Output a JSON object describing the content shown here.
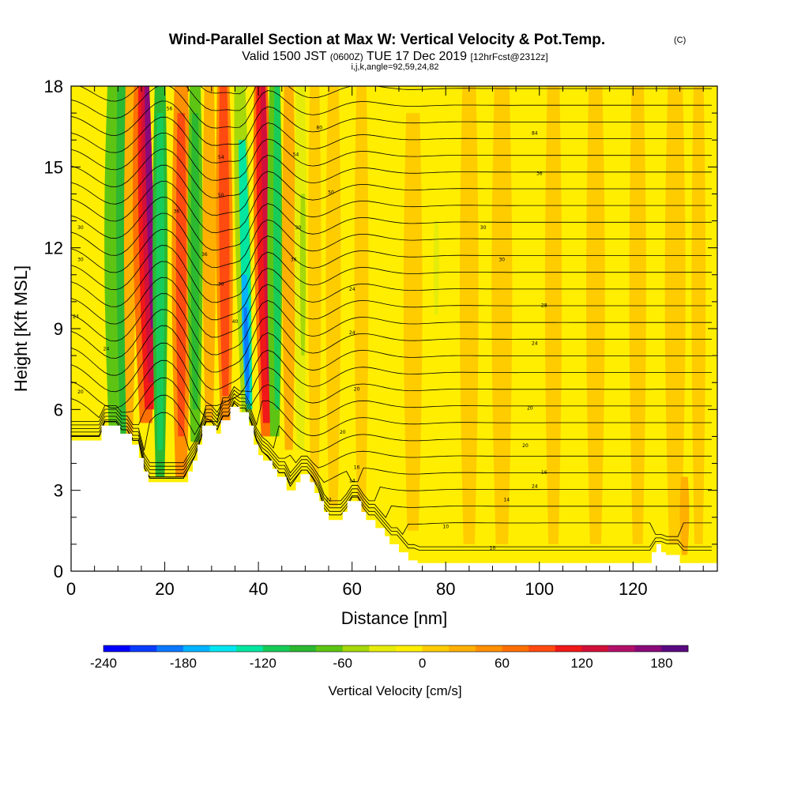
{
  "header": {
    "title": "Wind-Parallel Section at Max W: Vertical Velocity & Pot.Temp.",
    "copyright": "(C)",
    "valid_prefix": "Valid 1500 JST",
    "valid_zulu": "(0600Z)",
    "valid_date": "TUE 17 Dec 2019",
    "forecast": "[12hrFcst@2312z]",
    "indices": "i,j,k,angle=92,59,24,82"
  },
  "chart_data": {
    "type": "heatmap",
    "xlabel": "Distance [nm]",
    "ylabel": "Height [Kft MSL]",
    "xlim": [
      0,
      138
    ],
    "ylim": [
      0,
      18
    ],
    "x_ticks": [
      0,
      20,
      40,
      60,
      80,
      100,
      120
    ],
    "y_ticks": [
      0,
      3,
      6,
      9,
      12,
      15,
      18
    ],
    "x_tick_labels": [
      "0",
      "20",
      "40",
      "60",
      "80",
      "100",
      "120"
    ],
    "y_tick_labels": [
      "0",
      "3",
      "6",
      "9",
      "12",
      "15",
      "18"
    ],
    "colorbar": {
      "title": "Vertical Velocity [cm/s]",
      "min": -240,
      "max": 200,
      "step": 20,
      "tick_values": [
        -240,
        -180,
        -120,
        -60,
        0,
        60,
        120,
        180
      ],
      "tick_labels": [
        "-240",
        "-180",
        "-120",
        "-60",
        "0",
        "60",
        "120",
        "180"
      ],
      "colors": [
        "#0000ff",
        "#0a3cff",
        "#0a78ff",
        "#00b4ff",
        "#00e6f0",
        "#00e6a0",
        "#18cc5a",
        "#2cb830",
        "#5ec414",
        "#a6d80a",
        "#e6ec0a",
        "#ffee00",
        "#ffcc00",
        "#ffb000",
        "#ff9000",
        "#ff7000",
        "#ff4a10",
        "#f01818",
        "#d0103a",
        "#b0106a",
        "#8a0a7a",
        "#5a0a80"
      ]
    },
    "terrain": [
      [
        0,
        4.85
      ],
      [
        6.5,
        4.85
      ],
      [
        6.5,
        5.4
      ],
      [
        10.5,
        5.4
      ],
      [
        10.5,
        5.1
      ],
      [
        13,
        5.1
      ],
      [
        13,
        4.7
      ],
      [
        14.5,
        4.7
      ],
      [
        14.5,
        4.2
      ],
      [
        15.5,
        4.2
      ],
      [
        15.5,
        3.7
      ],
      [
        16.5,
        3.7
      ],
      [
        16.5,
        3.3
      ],
      [
        25,
        3.3
      ],
      [
        25,
        3.7
      ],
      [
        26,
        3.7
      ],
      [
        26,
        4.1
      ],
      [
        27,
        4.1
      ],
      [
        27,
        4.7
      ],
      [
        28,
        4.7
      ],
      [
        28,
        5.4
      ],
      [
        31,
        5.4
      ],
      [
        31,
        5.1
      ],
      [
        32,
        5.1
      ],
      [
        32,
        5.6
      ],
      [
        34,
        5.6
      ],
      [
        34,
        6.1
      ],
      [
        36,
        6.1
      ],
      [
        36,
        5.9
      ],
      [
        38,
        5.9
      ],
      [
        38,
        5.4
      ],
      [
        39,
        5.4
      ],
      [
        39,
        4.7
      ],
      [
        40,
        4.7
      ],
      [
        40,
        4.3
      ],
      [
        41,
        4.3
      ],
      [
        41,
        4.1
      ],
      [
        43,
        4.1
      ],
      [
        43,
        3.8
      ],
      [
        44,
        3.8
      ],
      [
        44,
        3.5
      ],
      [
        46,
        3.5
      ],
      [
        46,
        3
      ],
      [
        48,
        3
      ],
      [
        48,
        3.3
      ],
      [
        49,
        3.3
      ],
      [
        49,
        3.6
      ],
      [
        51,
        3.6
      ],
      [
        51,
        3.3
      ],
      [
        52,
        3.3
      ],
      [
        52,
        2.9
      ],
      [
        53,
        2.9
      ],
      [
        53,
        2.6
      ],
      [
        54,
        2.6
      ],
      [
        54,
        2.2
      ],
      [
        55,
        2.2
      ],
      [
        55,
        1.9
      ],
      [
        58,
        1.9
      ],
      [
        58,
        2.2
      ],
      [
        59,
        2.2
      ],
      [
        59,
        2.6
      ],
      [
        62,
        2.6
      ],
      [
        62,
        2.2
      ],
      [
        63,
        2.2
      ],
      [
        63,
        1.9
      ],
      [
        65,
        1.9
      ],
      [
        65,
        1.6
      ],
      [
        67,
        1.6
      ],
      [
        67,
        1.3
      ],
      [
        68,
        1.3
      ],
      [
        68,
        1
      ],
      [
        70,
        1
      ],
      [
        70,
        0.7
      ],
      [
        72,
        0.7
      ],
      [
        72,
        0.4
      ],
      [
        74,
        0.4
      ],
      [
        74,
        0.3
      ],
      [
        124,
        0.3
      ],
      [
        124,
        0.7
      ],
      [
        125,
        0.7
      ],
      [
        125,
        1
      ],
      [
        126,
        1
      ],
      [
        126,
        0.7
      ],
      [
        127,
        0.7
      ],
      [
        127,
        0.6
      ],
      [
        130,
        0.6
      ],
      [
        130,
        0.3
      ],
      [
        138,
        0.3
      ],
      [
        138,
        0
      ]
    ],
    "theta_labels": [
      {
        "text": "56",
        "x": 21,
        "y": 17.1
      },
      {
        "text": "54",
        "x": 32,
        "y": 15.3
      },
      {
        "text": "50",
        "x": 32,
        "y": 13.9
      },
      {
        "text": "36",
        "x": 22.5,
        "y": 13.3
      },
      {
        "text": "36",
        "x": 28.5,
        "y": 11.7
      },
      {
        "text": "36",
        "x": 32,
        "y": 10.6
      },
      {
        "text": "30",
        "x": 2,
        "y": 12.7
      },
      {
        "text": "30",
        "x": 2,
        "y": 11.5
      },
      {
        "text": "24",
        "x": 1,
        "y": 9.4
      },
      {
        "text": "24",
        "x": 7.5,
        "y": 8.2
      },
      {
        "text": "20",
        "x": 2,
        "y": 6.6
      },
      {
        "text": "40",
        "x": 35,
        "y": 9.2
      },
      {
        "text": "80",
        "x": 53,
        "y": 16.4
      },
      {
        "text": "54",
        "x": 48,
        "y": 15.4
      },
      {
        "text": "50",
        "x": 55.5,
        "y": 14.0
      },
      {
        "text": "30",
        "x": 48.5,
        "y": 12.7
      },
      {
        "text": "36",
        "x": 47.5,
        "y": 11.5
      },
      {
        "text": "24",
        "x": 60,
        "y": 10.4
      },
      {
        "text": "24",
        "x": 60,
        "y": 8.8
      },
      {
        "text": "20",
        "x": 61,
        "y": 6.7
      },
      {
        "text": "20",
        "x": 58,
        "y": 5.1
      },
      {
        "text": "16",
        "x": 61,
        "y": 3.8
      },
      {
        "text": "14",
        "x": 60,
        "y": 3.3
      },
      {
        "text": "12",
        "x": 55,
        "y": 2.6
      },
      {
        "text": "10",
        "x": 80,
        "y": 1.6
      },
      {
        "text": "10",
        "x": 90,
        "y": 0.8
      },
      {
        "text": "14",
        "x": 93,
        "y": 2.6
      },
      {
        "text": "16",
        "x": 101,
        "y": 3.6
      },
      {
        "text": "20",
        "x": 97,
        "y": 4.6
      },
      {
        "text": "20",
        "x": 98,
        "y": 6.0
      },
      {
        "text": "24",
        "x": 99,
        "y": 3.1
      },
      {
        "text": "24",
        "x": 99,
        "y": 8.4
      },
      {
        "text": "28",
        "x": 101,
        "y": 9.8
      },
      {
        "text": "30",
        "x": 92,
        "y": 11.5
      },
      {
        "text": "30",
        "x": 88,
        "y": 12.7
      },
      {
        "text": "36",
        "x": 100,
        "y": 14.7
      },
      {
        "text": "84",
        "x": 99,
        "y": 16.2
      }
    ]
  }
}
